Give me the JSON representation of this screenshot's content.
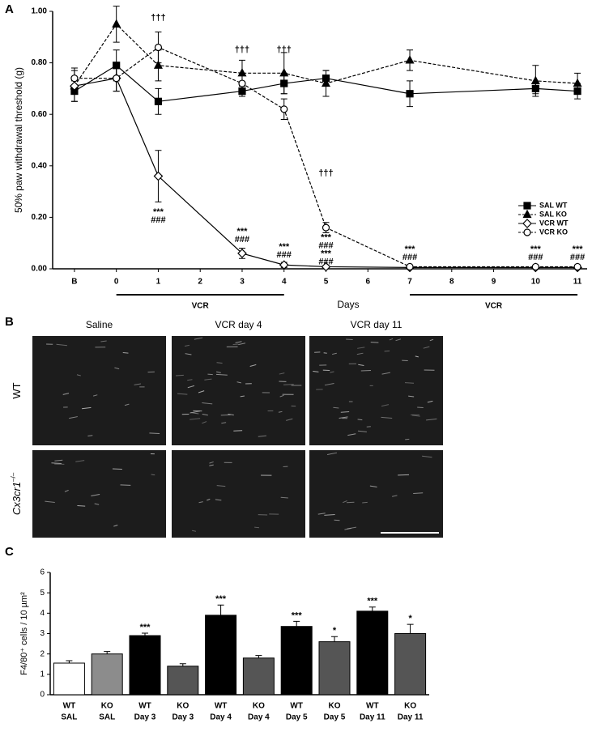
{
  "chart_data": [
    {
      "panel": "A",
      "type": "line",
      "xlabel": "Days",
      "ylabel": "50% paw withdrawal threshold (g)",
      "x": [
        -1,
        0,
        1,
        3,
        4,
        5,
        7,
        10,
        11
      ],
      "xlim": [
        -1.52,
        11.23
      ],
      "xticks": [
        {
          "value": -1,
          "label": "B"
        },
        0,
        1,
        2,
        3,
        4,
        5,
        6,
        7,
        8,
        9,
        10,
        11
      ],
      "ylim": [
        0,
        1
      ],
      "yticks": [
        {
          "value": 0,
          "label": "0.00"
        },
        {
          "value": 0.2,
          "label": "0.20"
        },
        {
          "value": 0.4,
          "label": "0.40"
        },
        {
          "value": 0.6,
          "label": "0.60"
        },
        {
          "value": 0.8,
          "label": "0.80"
        },
        {
          "value": 1,
          "label": "1.00"
        }
      ],
      "legend": "lower right",
      "series": [
        {
          "name": "SAL WT",
          "color": "#000000",
          "line": "solid",
          "marker": "square",
          "marker_fill": "#000000",
          "values": [
            0.69,
            0.79,
            0.65,
            0.69,
            0.72,
            0.74,
            0.68,
            0.7,
            0.69
          ],
          "errors": [
            0.04,
            0.06,
            0.05,
            0.02,
            0.04,
            0.03,
            0.05,
            0.02,
            0.03
          ]
        },
        {
          "name": "SAL KO",
          "color": "#000000",
          "line": "dashed",
          "marker": "triangle",
          "marker_fill": "#000000",
          "values": [
            0.71,
            0.95,
            0.79,
            0.76,
            0.76,
            0.72,
            0.81,
            0.73,
            0.72
          ],
          "errors": [
            0.06,
            0.07,
            0.06,
            0.05,
            0.08,
            0.05,
            0.04,
            0.06,
            0.04
          ]
        },
        {
          "name": "VCR WT",
          "color": "#000000",
          "line": "solid",
          "marker": "diamond",
          "marker_fill": "#ffffff",
          "values": [
            0.71,
            0.74,
            0.36,
            0.06,
            0.015,
            0.008,
            0.005,
            0.005,
            0.005
          ],
          "errors": [
            0.03,
            0.05,
            0.1,
            0.02,
            0.01,
            0.005,
            0.005,
            0.005,
            0.005
          ]
        },
        {
          "name": "VCR KO",
          "color": "#000000",
          "line": "dashed",
          "marker": "circle",
          "marker_fill": "#ffffff",
          "values": [
            0.74,
            0.74,
            0.86,
            0.72,
            0.62,
            0.16,
            0.008,
            0.008,
            0.008
          ],
          "errors": [
            0.04,
            0.05,
            0.06,
            0.03,
            0.04,
            0.02,
            0.005,
            0.005,
            0.005
          ]
        }
      ],
      "periods": [
        {
          "from": 0,
          "to": 4,
          "label": "VCR"
        },
        {
          "from": 7,
          "to": 11,
          "label": "VCR"
        }
      ],
      "annotations": [
        {
          "x": 1,
          "y": 0.975,
          "lines": [
            "†††"
          ]
        },
        {
          "x": 3,
          "y": 0.85,
          "lines": [
            "†††"
          ]
        },
        {
          "x": 4,
          "y": 0.85,
          "lines": [
            "†††"
          ]
        },
        {
          "x": 5,
          "y": 0.37,
          "lines": [
            "†††"
          ]
        },
        {
          "x": 1,
          "y": 0.22,
          "lines": [
            "***",
            "###"
          ]
        },
        {
          "x": 3,
          "y": 0.145,
          "lines": [
            "***",
            "###"
          ]
        },
        {
          "x": 4,
          "y": 0.085,
          "lines": [
            "***",
            "###"
          ]
        },
        {
          "x": 5,
          "y": 0.12,
          "lines": [
            "***",
            "###",
            "***",
            "###"
          ]
        },
        {
          "x": 7,
          "y": 0.075,
          "lines": [
            "***",
            "###"
          ]
        },
        {
          "x": 10,
          "y": 0.075,
          "lines": [
            "***",
            "###"
          ]
        },
        {
          "x": 11,
          "y": 0.075,
          "lines": [
            "***",
            "###"
          ]
        }
      ]
    },
    {
      "panel": "C",
      "type": "bar",
      "ylabel": "F4/80⁺ cells / 10 µm²",
      "categories": [
        [
          "WT",
          "SAL"
        ],
        [
          "KO",
          "SAL"
        ],
        [
          "WT",
          "Day 3"
        ],
        [
          "KO",
          "Day 3"
        ],
        [
          "WT",
          "Day 4"
        ],
        [
          "KO",
          "Day 4"
        ],
        [
          "WT",
          "Day 5"
        ],
        [
          "KO",
          "Day 5"
        ],
        [
          "WT",
          "Day 11"
        ],
        [
          "KO",
          "Day 11"
        ]
      ],
      "values": [
        1.55,
        2.0,
        2.9,
        1.4,
        3.9,
        1.8,
        3.35,
        2.6,
        4.1,
        3.0
      ],
      "errors": [
        0.12,
        0.12,
        0.12,
        0.12,
        0.5,
        0.12,
        0.25,
        0.25,
        0.2,
        0.45
      ],
      "colors": [
        "#ffffff",
        "#8c8c8c",
        "#000000",
        "#555555",
        "#000000",
        "#555555",
        "#000000",
        "#555555",
        "#000000",
        "#555555"
      ],
      "significance": [
        null,
        null,
        "***",
        null,
        "***",
        null,
        "***",
        "*",
        "***",
        "*"
      ],
      "ylim": [
        0,
        6
      ],
      "yticks": [
        0,
        1,
        2,
        3,
        4,
        5,
        6
      ]
    }
  ],
  "image_panel": {
    "panel": "B",
    "columns": [
      "Saline",
      "VCR day 4",
      "VCR day 11"
    ],
    "rows": [
      {
        "text": "WT"
      },
      {
        "text": "Cx3cr1",
        "sup": "–/–"
      }
    ]
  }
}
